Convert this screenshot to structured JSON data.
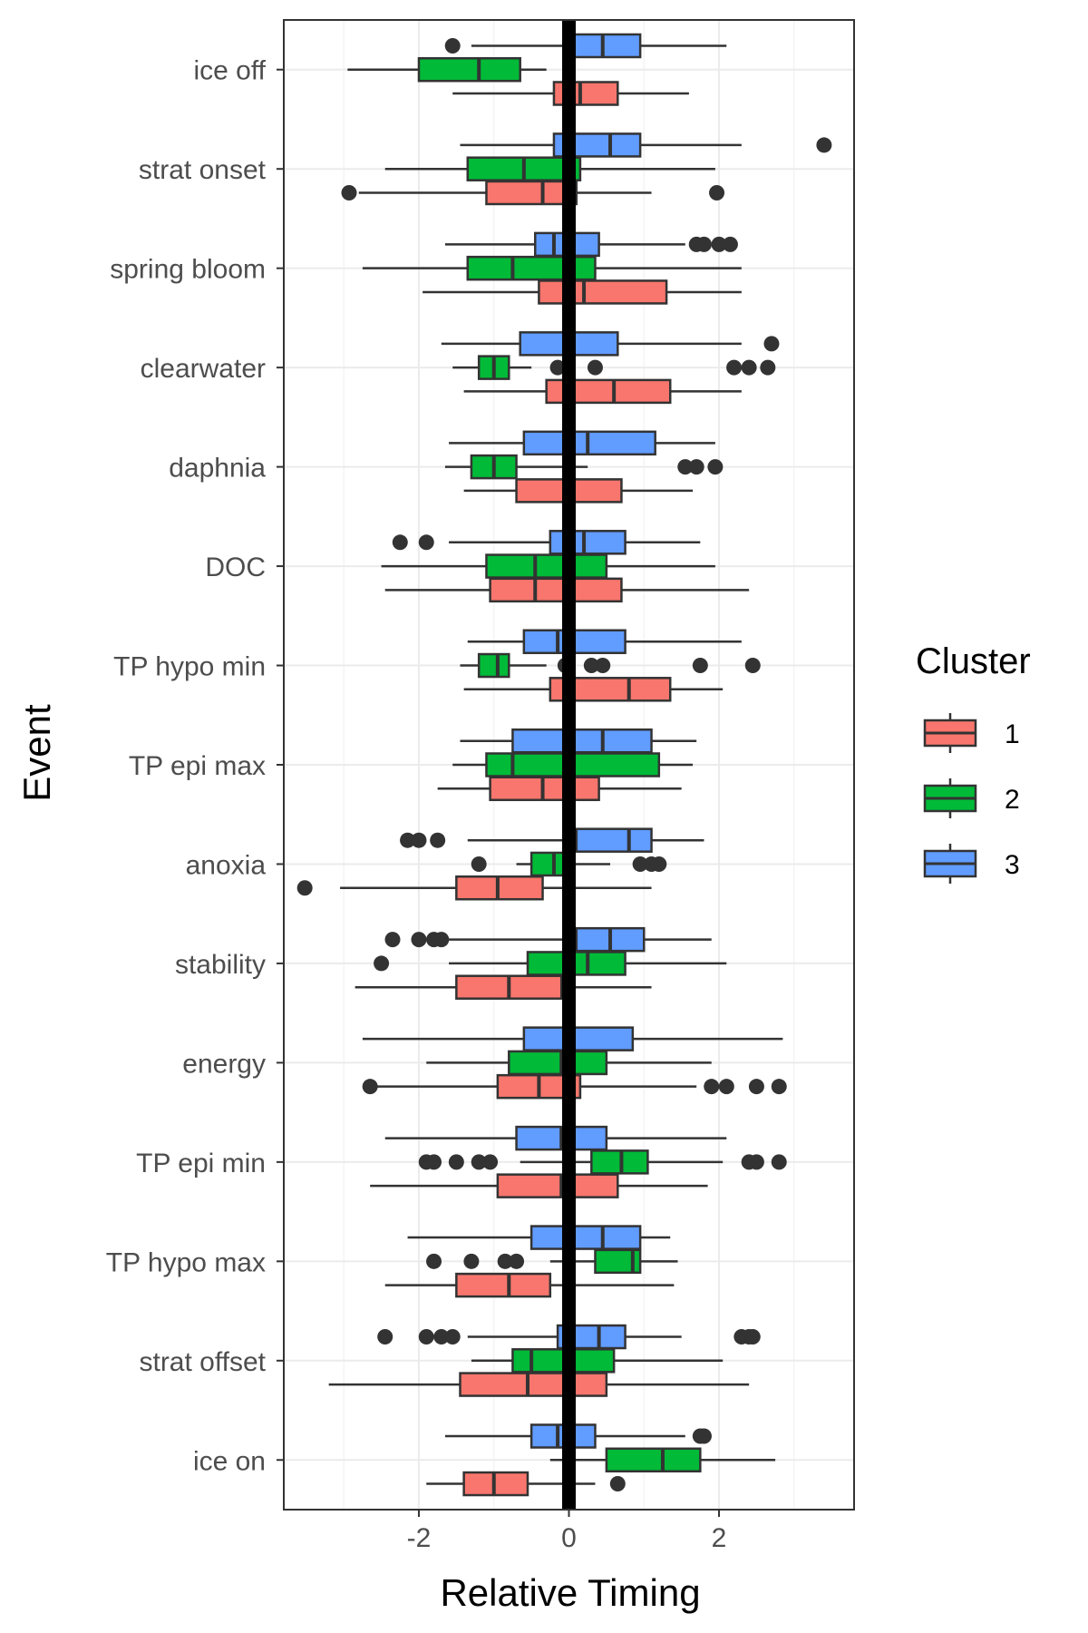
{
  "chart_data": {
    "type": "boxplot",
    "orientation": "horizontal",
    "xlabel": "Relative Timing",
    "ylabel": "Event",
    "xlim": [
      -3.8,
      3.8
    ],
    "x_ticks": [
      -2,
      0,
      2
    ],
    "x_tick_labels": [
      "-2",
      "0",
      "2"
    ],
    "grid": true,
    "reference_line": {
      "x": 0,
      "color": "#000000"
    },
    "categories": [
      "ice off",
      "strat onset",
      "spring bloom",
      "clearwater",
      "daphnia",
      "DOC",
      "TP hypo min",
      "TP epi max",
      "anoxia",
      "stability",
      "energy",
      "TP epi min",
      "TP hypo max",
      "strat offset",
      "ice on"
    ],
    "legend": {
      "title": "Cluster",
      "placement": "right",
      "entries": [
        {
          "label": "1",
          "color": "#F8766D"
        },
        {
          "label": "2",
          "color": "#00BA38"
        },
        {
          "label": "3",
          "color": "#619CFF"
        }
      ]
    },
    "series": [
      {
        "name": "1",
        "color": "#F8766D",
        "boxes": [
          {
            "category": "ice off",
            "whisker_low": -1.55,
            "q1": -0.2,
            "median": 0.15,
            "q3": 0.65,
            "whisker_high": 1.6,
            "outliers": []
          },
          {
            "category": "strat onset",
            "whisker_low": -2.8,
            "q1": -1.1,
            "median": -0.35,
            "q3": 0.1,
            "whisker_high": 1.1,
            "outliers": [
              -2.93,
              1.97
            ]
          },
          {
            "category": "spring bloom",
            "whisker_low": -1.95,
            "q1": -0.4,
            "median": 0.2,
            "q3": 1.3,
            "whisker_high": 2.3,
            "outliers": []
          },
          {
            "category": "clearwater",
            "whisker_low": -1.4,
            "q1": -0.3,
            "median": 0.6,
            "q3": 1.35,
            "whisker_high": 2.3,
            "outliers": []
          },
          {
            "category": "daphnia",
            "whisker_low": -1.4,
            "q1": -0.7,
            "median": 0.05,
            "q3": 0.7,
            "whisker_high": 1.65,
            "outliers": []
          },
          {
            "category": "DOC",
            "whisker_low": -2.45,
            "q1": -1.05,
            "median": -0.45,
            "q3": 0.7,
            "whisker_high": 2.4,
            "outliers": []
          },
          {
            "category": "TP hypo min",
            "whisker_low": -1.4,
            "q1": -0.25,
            "median": 0.8,
            "q3": 1.35,
            "whisker_high": 2.05,
            "outliers": []
          },
          {
            "category": "TP epi max",
            "whisker_low": -1.75,
            "q1": -1.05,
            "median": -0.35,
            "q3": 0.4,
            "whisker_high": 1.5,
            "outliers": []
          },
          {
            "category": "anoxia",
            "whisker_low": -3.05,
            "q1": -1.5,
            "median": -0.95,
            "q3": -0.35,
            "whisker_high": 1.1,
            "outliers": [
              -3.52
            ]
          },
          {
            "category": "stability",
            "whisker_low": -2.85,
            "q1": -1.5,
            "median": -0.8,
            "q3": -0.1,
            "whisker_high": 1.1,
            "outliers": []
          },
          {
            "category": "energy",
            "whisker_low": -2.65,
            "q1": -0.95,
            "median": -0.4,
            "q3": 0.15,
            "whisker_high": 1.7,
            "outliers": [
              -2.65,
              1.9,
              2.1,
              2.5,
              2.8
            ]
          },
          {
            "category": "TP epi min",
            "whisker_low": -2.65,
            "q1": -0.95,
            "median": -0.1,
            "q3": 0.65,
            "whisker_high": 1.85,
            "outliers": []
          },
          {
            "category": "TP hypo max",
            "whisker_low": -2.45,
            "q1": -1.5,
            "median": -0.8,
            "q3": -0.25,
            "whisker_high": 1.4,
            "outliers": []
          },
          {
            "category": "strat offset",
            "whisker_low": -3.2,
            "q1": -1.45,
            "median": -0.55,
            "q3": 0.5,
            "whisker_high": 2.4,
            "outliers": []
          },
          {
            "category": "ice on",
            "whisker_low": -1.9,
            "q1": -1.4,
            "median": -1.0,
            "q3": -0.55,
            "whisker_high": 0.35,
            "outliers": [
              0.65
            ]
          }
        ]
      },
      {
        "name": "2",
        "color": "#00BA38",
        "boxes": [
          {
            "category": "ice off",
            "whisker_low": -2.95,
            "q1": -2.0,
            "median": -1.2,
            "q3": -0.65,
            "whisker_high": -0.3,
            "outliers": []
          },
          {
            "category": "strat onset",
            "whisker_low": -2.45,
            "q1": -1.35,
            "median": -0.6,
            "q3": 0.15,
            "whisker_high": 1.95,
            "outliers": []
          },
          {
            "category": "spring bloom",
            "whisker_low": -2.75,
            "q1": -1.35,
            "median": -0.75,
            "q3": 0.35,
            "whisker_high": 2.3,
            "outliers": []
          },
          {
            "category": "clearwater",
            "whisker_low": -1.55,
            "q1": -1.2,
            "median": -1.0,
            "q3": -0.8,
            "whisker_high": -0.5,
            "outliers": [
              -0.15,
              0.35,
              2.2,
              2.4,
              2.65
            ]
          },
          {
            "category": "daphnia",
            "whisker_low": -1.65,
            "q1": -1.3,
            "median": -1.0,
            "q3": -0.7,
            "whisker_high": 0.25,
            "outliers": [
              1.55,
              1.7,
              1.95
            ]
          },
          {
            "category": "DOC",
            "whisker_low": -2.5,
            "q1": -1.1,
            "median": -0.45,
            "q3": 0.5,
            "whisker_high": 1.95,
            "outliers": []
          },
          {
            "category": "TP hypo min",
            "whisker_low": -1.45,
            "q1": -1.2,
            "median": -0.95,
            "q3": -0.8,
            "whisker_high": -0.3,
            "outliers": [
              -0.05,
              0.3,
              0.45,
              1.75,
              2.45
            ]
          },
          {
            "category": "TP epi max",
            "whisker_low": -1.55,
            "q1": -1.1,
            "median": -0.75,
            "q3": 1.2,
            "whisker_high": 1.65,
            "outliers": []
          },
          {
            "category": "anoxia",
            "whisker_low": -0.7,
            "q1": -0.5,
            "median": -0.2,
            "q3": -0.05,
            "whisker_high": 0.55,
            "outliers": [
              -1.2,
              0.95,
              1.1,
              1.2
            ]
          },
          {
            "category": "stability",
            "whisker_low": -1.6,
            "q1": -0.55,
            "median": 0.25,
            "q3": 0.75,
            "whisker_high": 2.1,
            "outliers": [
              -2.5
            ]
          },
          {
            "category": "energy",
            "whisker_low": -1.9,
            "q1": -0.8,
            "median": -0.1,
            "q3": 0.5,
            "whisker_high": 1.9,
            "outliers": []
          },
          {
            "category": "TP epi min",
            "whisker_low": -0.65,
            "q1": 0.3,
            "median": 0.7,
            "q3": 1.05,
            "whisker_high": 2.05,
            "outliers": [
              -1.9,
              -1.8,
              -1.5,
              -1.2,
              -1.05,
              2.4,
              2.5,
              2.8
            ]
          },
          {
            "category": "TP hypo max",
            "whisker_low": -0.25,
            "q1": 0.35,
            "median": 0.85,
            "q3": 0.95,
            "whisker_high": 1.45,
            "outliers": [
              -1.8,
              -1.3,
              -0.85,
              -0.7
            ]
          },
          {
            "category": "strat offset",
            "whisker_low": -1.3,
            "q1": -0.75,
            "median": -0.5,
            "q3": 0.6,
            "whisker_high": 2.05,
            "outliers": []
          },
          {
            "category": "ice on",
            "whisker_low": -0.25,
            "q1": 0.5,
            "median": 1.25,
            "q3": 1.75,
            "whisker_high": 2.75,
            "outliers": []
          }
        ]
      },
      {
        "name": "3",
        "color": "#619CFF",
        "boxes": [
          {
            "category": "ice off",
            "whisker_low": -1.3,
            "q1": 0.05,
            "median": 0.45,
            "q3": 0.95,
            "whisker_high": 2.1,
            "outliers": [
              -1.55
            ]
          },
          {
            "category": "strat onset",
            "whisker_low": -1.45,
            "q1": -0.2,
            "median": 0.55,
            "q3": 0.95,
            "whisker_high": 2.3,
            "outliers": [
              3.4
            ]
          },
          {
            "category": "spring bloom",
            "whisker_low": -1.65,
            "q1": -0.45,
            "median": -0.2,
            "q3": 0.4,
            "whisker_high": 1.55,
            "outliers": [
              1.7,
              1.8,
              2.0,
              2.15
            ]
          },
          {
            "category": "clearwater",
            "whisker_low": -1.7,
            "q1": -0.65,
            "median": 0.05,
            "q3": 0.65,
            "whisker_high": 2.3,
            "outliers": [
              2.7
            ]
          },
          {
            "category": "daphnia",
            "whisker_low": -1.6,
            "q1": -0.6,
            "median": 0.25,
            "q3": 1.15,
            "whisker_high": 1.95,
            "outliers": []
          },
          {
            "category": "DOC",
            "whisker_low": -1.6,
            "q1": -0.25,
            "median": 0.2,
            "q3": 0.75,
            "whisker_high": 1.75,
            "outliers": [
              -2.25,
              -1.9
            ]
          },
          {
            "category": "TP hypo min",
            "whisker_low": -1.35,
            "q1": -0.6,
            "median": -0.15,
            "q3": 0.75,
            "whisker_high": 2.3,
            "outliers": []
          },
          {
            "category": "TP epi max",
            "whisker_low": -1.45,
            "q1": -0.75,
            "median": 0.45,
            "q3": 1.1,
            "whisker_high": 1.7,
            "outliers": []
          },
          {
            "category": "anoxia",
            "whisker_low": -1.35,
            "q1": 0.1,
            "median": 0.8,
            "q3": 1.1,
            "whisker_high": 1.8,
            "outliers": [
              -2.15,
              -2.0,
              -1.75
            ]
          },
          {
            "category": "stability",
            "whisker_low": -1.6,
            "q1": 0.1,
            "median": 0.55,
            "q3": 1.0,
            "whisker_high": 1.9,
            "outliers": [
              -2.35,
              -2.0,
              -1.8,
              -1.7
            ]
          },
          {
            "category": "energy",
            "whisker_low": -2.75,
            "q1": -0.6,
            "median": 0.05,
            "q3": 0.85,
            "whisker_high": 2.85,
            "outliers": []
          },
          {
            "category": "TP epi min",
            "whisker_low": -2.45,
            "q1": -0.7,
            "median": -0.1,
            "q3": 0.5,
            "whisker_high": 2.1,
            "outliers": []
          },
          {
            "category": "TP hypo max",
            "whisker_low": -2.15,
            "q1": -0.5,
            "median": 0.45,
            "q3": 0.95,
            "whisker_high": 1.35,
            "outliers": []
          },
          {
            "category": "strat offset",
            "whisker_low": -1.35,
            "q1": -0.15,
            "median": 0.4,
            "q3": 0.75,
            "whisker_high": 1.5,
            "outliers": [
              -2.45,
              -1.9,
              -1.7,
              -1.55,
              2.3,
              2.4,
              2.45
            ]
          },
          {
            "category": "ice on",
            "whisker_low": -1.65,
            "q1": -0.5,
            "median": -0.15,
            "q3": 0.35,
            "whisker_high": 1.55,
            "outliers": [
              1.75,
              1.8
            ]
          }
        ]
      }
    ]
  }
}
